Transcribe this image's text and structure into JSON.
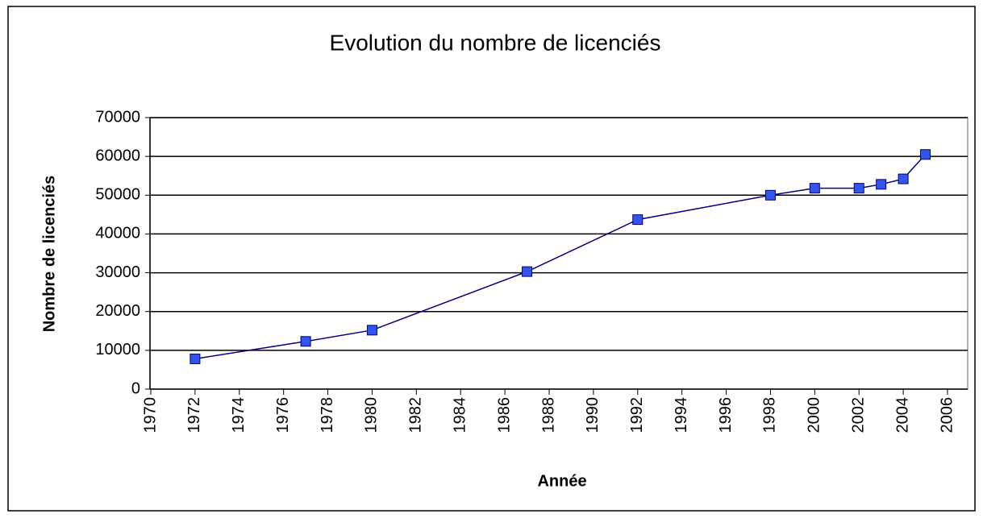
{
  "chart_data": {
    "type": "line",
    "title": "Evolution du nombre de licenciés",
    "x_label": "Année",
    "y_label": "Nombre de licenciés",
    "x": [
      1972,
      1977,
      1980,
      1987,
      1992,
      1998,
      2000,
      2002,
      2003,
      2004,
      2005
    ],
    "series": [
      {
        "name": "Nombre de licenciés",
        "color": "#000080",
        "marker_color": "#3355ee",
        "values": [
          7800,
          12300,
          15200,
          30300,
          43700,
          50000,
          51800,
          51800,
          52800,
          54200,
          60500
        ]
      }
    ],
    "xlim": [
      1970,
      2006
    ],
    "xticks": [
      1970,
      1972,
      1974,
      1976,
      1978,
      1980,
      1982,
      1984,
      1986,
      1988,
      1990,
      1992,
      1994,
      1996,
      1998,
      2000,
      2002,
      2004,
      2006
    ],
    "ylim": [
      0,
      70000
    ],
    "yticks": [
      0,
      10000,
      20000,
      30000,
      40000,
      50000,
      60000,
      70000
    ],
    "grid": true
  }
}
